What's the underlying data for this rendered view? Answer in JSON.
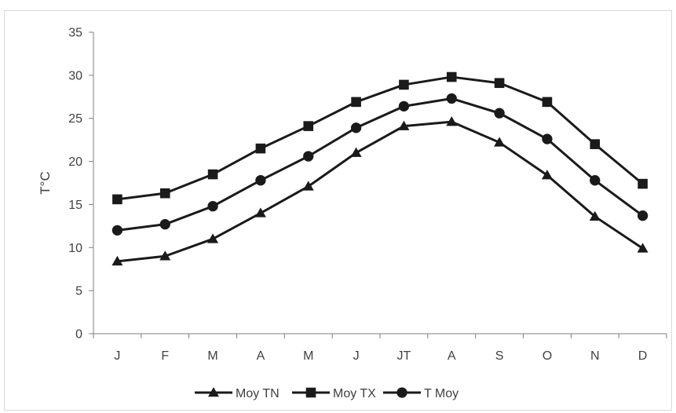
{
  "chart_data": {
    "type": "line",
    "title": "",
    "xlabel": "",
    "ylabel": "T°C",
    "categories": [
      "J",
      "F",
      "M",
      "A",
      "M",
      "J",
      "JT",
      "A",
      "S",
      "O",
      "N",
      "D"
    ],
    "ylim": [
      0,
      35
    ],
    "yticks": [
      "0",
      "5",
      "10",
      "15",
      "20",
      "25",
      "30",
      "35"
    ],
    "grid": false,
    "legend": "bottom",
    "series": [
      {
        "name": "Moy TN",
        "marker": "triangle",
        "color": "#1a1a1a",
        "values": [
          8.4,
          9.0,
          11.0,
          14.0,
          17.1,
          21.0,
          24.1,
          24.6,
          22.2,
          18.4,
          13.6,
          9.9
        ]
      },
      {
        "name": "Moy TX",
        "marker": "square",
        "color": "#1a1a1a",
        "values": [
          15.6,
          16.3,
          18.5,
          21.5,
          24.1,
          26.9,
          28.9,
          29.8,
          29.1,
          26.9,
          22.0,
          17.4
        ]
      },
      {
        "name": "T Moy",
        "marker": "circle",
        "color": "#1a1a1a",
        "values": [
          12.0,
          12.7,
          14.8,
          17.8,
          20.6,
          23.9,
          26.4,
          27.3,
          25.6,
          22.6,
          17.8,
          13.7
        ]
      }
    ]
  }
}
